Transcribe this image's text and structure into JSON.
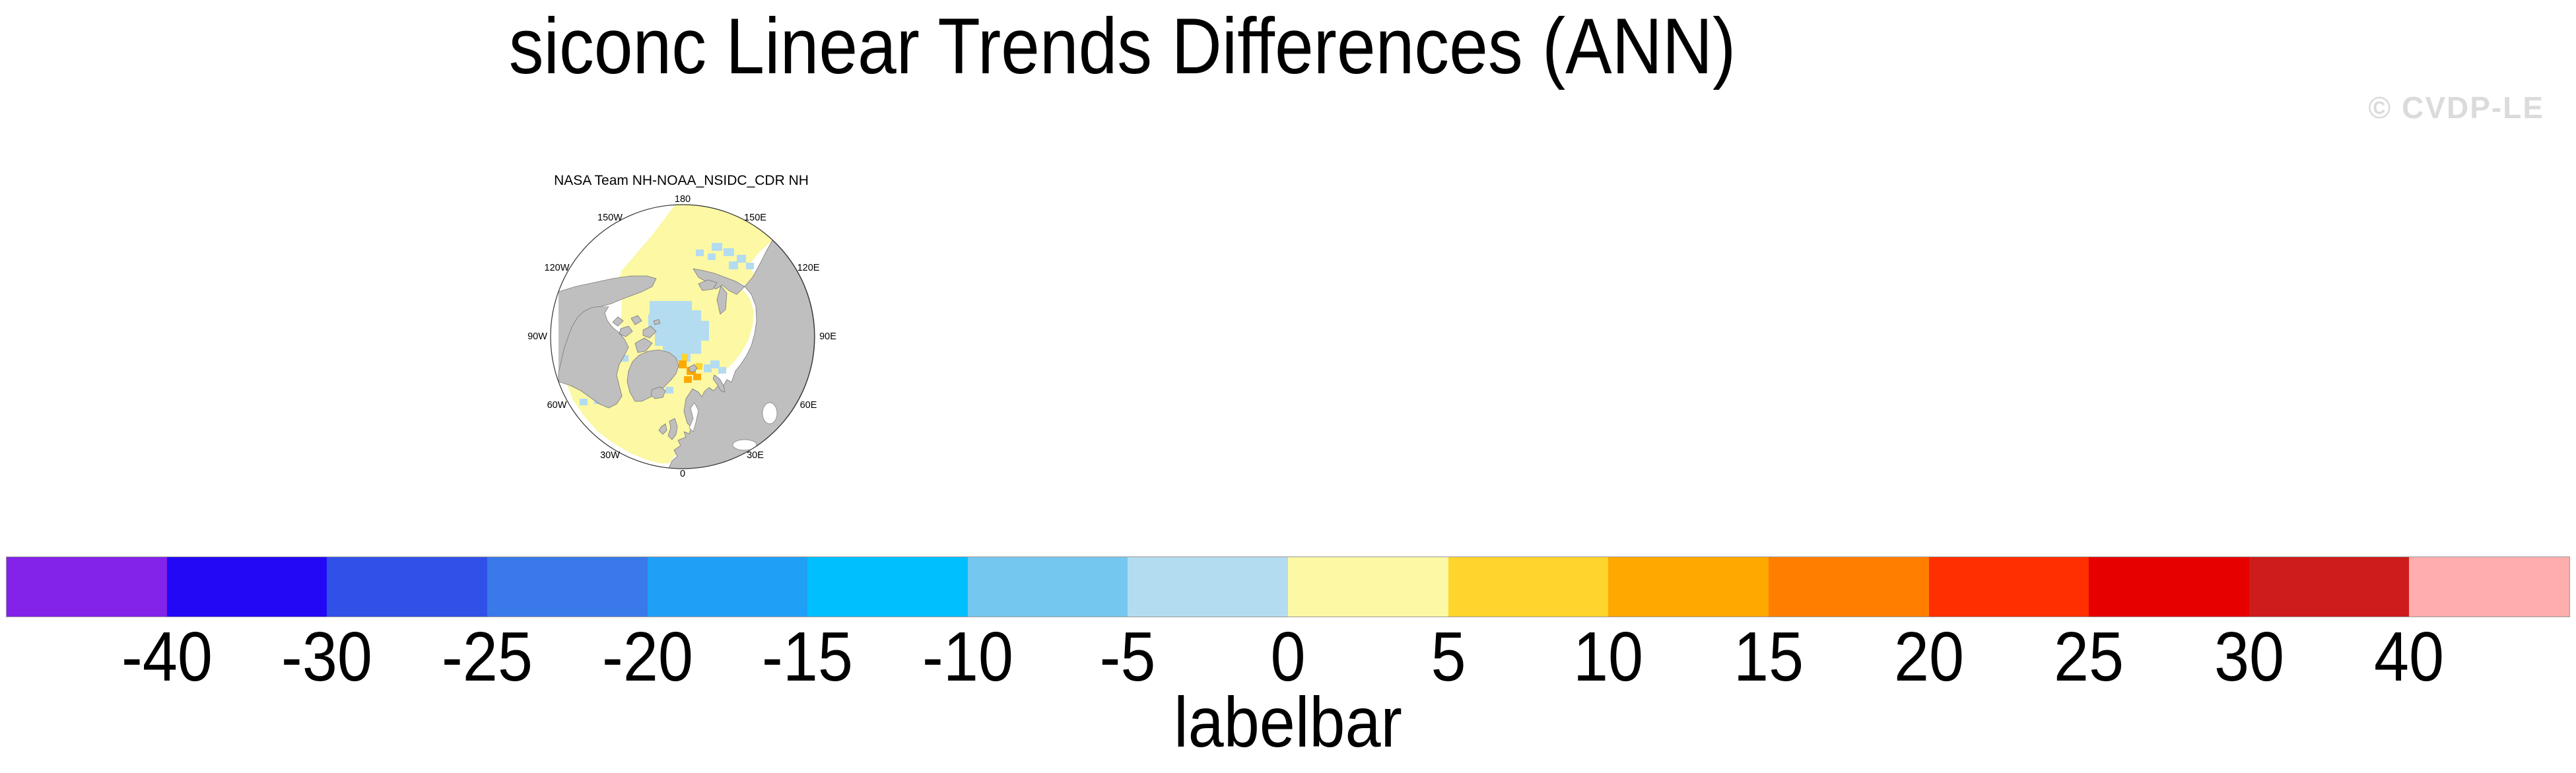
{
  "figure": {
    "title": "siconc Linear Trends Differences (ANN)",
    "watermark": "© CVDP-LE",
    "background_color": "#FFFFFF"
  },
  "map": {
    "title": "NASA Team NH-NOAA_NSIDC_CDR NH",
    "longitude_labels": [
      {
        "text": "180",
        "angle": 0
      },
      {
        "text": "150E",
        "angle": 30
      },
      {
        "text": "120E",
        "angle": 60
      },
      {
        "text": "90E",
        "angle": 90
      },
      {
        "text": "60E",
        "angle": 120
      },
      {
        "text": "30E",
        "angle": 150
      },
      {
        "text": "0",
        "angle": 180
      },
      {
        "text": "30W",
        "angle": 210
      },
      {
        "text": "60W",
        "angle": 240
      },
      {
        "text": "90W",
        "angle": 270
      },
      {
        "text": "120W",
        "angle": 300
      },
      {
        "text": "150W",
        "angle": 330
      }
    ],
    "colors": {
      "ocean": "#FFFFFF",
      "land": "#BFBFBF",
      "coastline": "#7A7A7A",
      "boundary": "#333333",
      "trend_positive": "#FCF8A4",
      "trend_negative": "#B4DCF0",
      "trend_gold": "#FFD42C",
      "trend_orange": "#FFA800"
    }
  },
  "labelbar": {
    "caption": "labelbar",
    "tick_values": [
      "-40",
      "-30",
      "-25",
      "-20",
      "-15",
      "-10",
      "-5",
      "0",
      "5",
      "10",
      "15",
      "20",
      "25",
      "30",
      "40"
    ],
    "colors": [
      "#8322E8",
      "#2208F4",
      "#3150E8",
      "#3A79EA",
      "#1F9FF6",
      "#00BFFF",
      "#74C8F0",
      "#B4DCF0",
      "#FCF8A4",
      "#FFD42C",
      "#FFA800",
      "#FF7E00",
      "#FF2F00",
      "#E60000",
      "#CE1B1B",
      "#FFADAD"
    ]
  },
  "chart_data": {
    "type": "heatmap",
    "title": "siconc Linear Trends Differences (ANN)",
    "panel_title": "NASA Team NH-NOAA_NSIDC_CDR NH",
    "projection": "north polar stereographic",
    "colorbar": {
      "label": "labelbar",
      "tick_values": [
        -40,
        -30,
        -25,
        -20,
        -15,
        -10,
        -5,
        0,
        5,
        10,
        15,
        20,
        25,
        30,
        40
      ],
      "n_segments": 16,
      "colors": [
        "#8322E8",
        "#2208F4",
        "#3150E8",
        "#3A79EA",
        "#1F9FF6",
        "#00BFFF",
        "#74C8F0",
        "#B4DCF0",
        "#FCF8A4",
        "#FFD42C",
        "#FFA800",
        "#FF7E00",
        "#FF2F00",
        "#E60000",
        "#CE1B1B",
        "#FFADAD"
      ],
      "legend_position": "bottom"
    },
    "longitude_ring_labels": [
      "180",
      "150E",
      "120E",
      "90E",
      "60E",
      "30E",
      "0",
      "30W",
      "60W",
      "90W",
      "120W",
      "150W"
    ],
    "map_value_colors": {
      "land": "#BFBFBF",
      "ocean_or_missing": "#FFFFFF",
      "trend_diff_0_to_5": "#FCF8A4",
      "trend_diff_-5_to_0": "#B4DCF0",
      "trend_diff_5_to_10": "#FFD42C",
      "trend_diff_10_to_15": "#FFA800"
    }
  }
}
